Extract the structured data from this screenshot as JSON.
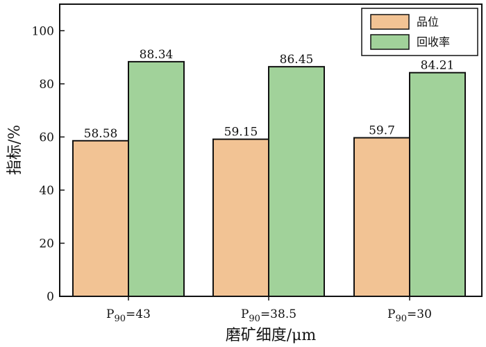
{
  "chart_data": {
    "type": "bar",
    "categories": [
      {
        "main": "P",
        "sub": "90",
        "rest": "=43"
      },
      {
        "main": "P",
        "sub": "90",
        "rest": "=38.5"
      },
      {
        "main": "P",
        "sub": "90",
        "rest": "=30"
      }
    ],
    "series": [
      {
        "name": "品位",
        "values": [
          58.58,
          59.15,
          59.7
        ],
        "labels": [
          "58.58",
          "59.15",
          "59.7"
        ],
        "color": "#F2C394"
      },
      {
        "name": "回收率",
        "values": [
          88.34,
          86.45,
          84.21
        ],
        "labels": [
          "88.34",
          "86.45",
          "84.21"
        ],
        "color": "#A1D29A"
      }
    ],
    "xlabel": "磨矿细度/μm",
    "ylabel": "指标/%",
    "ylim": [
      0,
      110
    ],
    "yticks": [
      0,
      20,
      40,
      60,
      80,
      100
    ],
    "legend_position": "top-right"
  }
}
